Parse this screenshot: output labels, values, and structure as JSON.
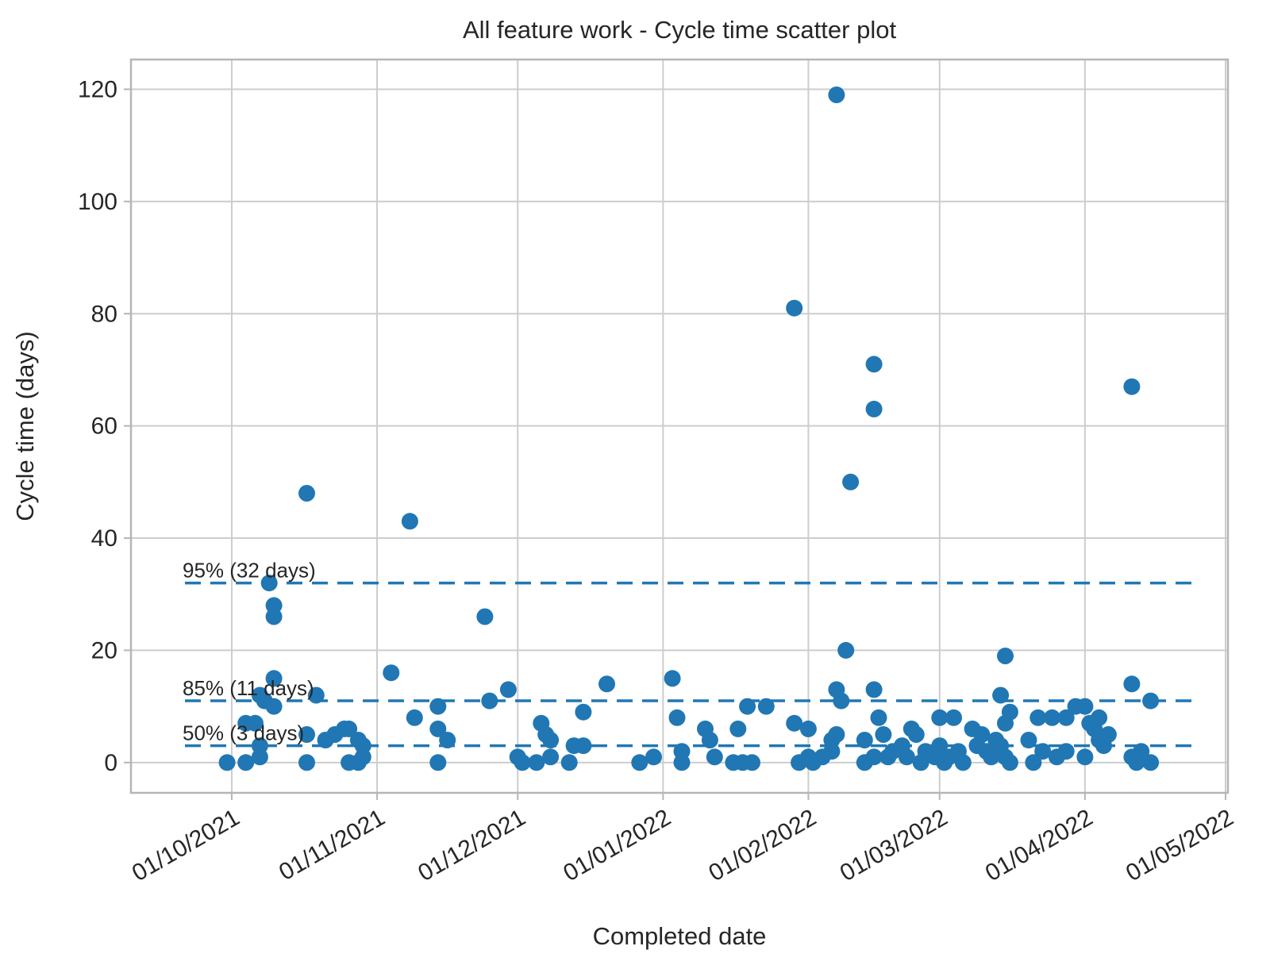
{
  "chart_data": {
    "type": "scatter",
    "title": "All feature work - Cycle time scatter plot",
    "xlabel": "Completed date",
    "ylabel": "Cycle time (days)",
    "grid": true,
    "legend": "none",
    "x_axis": {
      "origin_date": "2021-10-01",
      "xlim_days": [
        -21.5,
        212.5
      ],
      "tick_dates": [
        "2021-10-01",
        "2021-11-01",
        "2021-12-01",
        "2022-01-01",
        "2022-02-01",
        "2022-03-01",
        "2022-04-01",
        "2022-05-01"
      ],
      "tick_labels": [
        "01/10/2021",
        "01/11/2021",
        "01/12/2021",
        "01/01/2022",
        "01/02/2022",
        "01/03/2022",
        "01/04/2022",
        "01/05/2022"
      ],
      "tick_rotation_deg": -30
    },
    "y_axis": {
      "ylim": [
        -5.4,
        125.3
      ],
      "ticks": [
        0,
        20,
        40,
        60,
        80,
        100,
        120
      ]
    },
    "percentile_lines": [
      {
        "label": "95% (32 days)",
        "value": 32
      },
      {
        "label": "85% (11 days)",
        "value": 11
      },
      {
        "label": "50% (3 days)",
        "value": 3
      }
    ],
    "style": {
      "point_color": "#2077b4",
      "percentile_line_color": "#2077b4",
      "grid_color": "#cdcdcd",
      "spine_color": "#b6b6b6",
      "text_color": "#262626",
      "background": "#ffffff"
    },
    "points": [
      [
        "2021-09-30",
        0
      ],
      [
        "2021-10-04",
        0
      ],
      [
        "2021-10-04",
        7
      ],
      [
        "2021-10-06",
        7
      ],
      [
        "2021-10-07",
        3
      ],
      [
        "2021-10-07",
        1
      ],
      [
        "2021-10-07",
        12
      ],
      [
        "2021-10-08",
        11
      ],
      [
        "2021-10-10",
        10
      ],
      [
        "2021-10-10",
        15
      ],
      [
        "2021-10-10",
        26
      ],
      [
        "2021-10-10",
        28
      ],
      [
        "2021-10-09",
        32
      ],
      [
        "2021-10-17",
        48
      ],
      [
        "2021-10-17",
        5
      ],
      [
        "2021-10-17",
        0
      ],
      [
        "2021-10-19",
        12
      ],
      [
        "2021-10-21",
        4
      ],
      [
        "2021-10-23",
        5
      ],
      [
        "2021-10-25",
        6
      ],
      [
        "2021-10-26",
        6
      ],
      [
        "2021-10-26",
        0
      ],
      [
        "2021-10-28",
        4
      ],
      [
        "2021-10-28",
        0
      ],
      [
        "2021-10-29",
        3
      ],
      [
        "2021-10-29",
        1
      ],
      [
        "2021-11-04",
        16
      ],
      [
        "2021-11-08",
        43
      ],
      [
        "2021-11-09",
        8
      ],
      [
        "2021-11-14",
        10
      ],
      [
        "2021-11-14",
        6
      ],
      [
        "2021-11-14",
        0
      ],
      [
        "2021-11-16",
        4
      ],
      [
        "2021-11-24",
        26
      ],
      [
        "2021-11-25",
        11
      ],
      [
        "2021-11-29",
        13
      ],
      [
        "2021-12-01",
        1
      ],
      [
        "2021-12-02",
        0
      ],
      [
        "2021-12-05",
        0
      ],
      [
        "2021-12-06",
        7
      ],
      [
        "2021-12-07",
        5
      ],
      [
        "2021-12-08",
        4
      ],
      [
        "2021-12-08",
        1
      ],
      [
        "2021-12-12",
        0
      ],
      [
        "2021-12-13",
        3
      ],
      [
        "2021-12-15",
        3
      ],
      [
        "2021-12-15",
        9
      ],
      [
        "2021-12-20",
        14
      ],
      [
        "2021-12-27",
        0
      ],
      [
        "2021-12-30",
        1
      ],
      [
        "2022-01-03",
        15
      ],
      [
        "2022-01-04",
        8
      ],
      [
        "2022-01-05",
        2
      ],
      [
        "2022-01-05",
        0
      ],
      [
        "2022-01-10",
        6
      ],
      [
        "2022-01-11",
        4
      ],
      [
        "2022-01-12",
        1
      ],
      [
        "2022-01-16",
        0
      ],
      [
        "2022-01-17",
        6
      ],
      [
        "2022-01-18",
        0
      ],
      [
        "2022-01-19",
        10
      ],
      [
        "2022-01-20",
        0
      ],
      [
        "2022-01-23",
        10
      ],
      [
        "2022-01-29",
        81
      ],
      [
        "2022-01-29",
        7
      ],
      [
        "2022-01-30",
        0
      ],
      [
        "2022-02-01",
        6
      ],
      [
        "2022-02-01",
        1
      ],
      [
        "2022-02-02",
        0
      ],
      [
        "2022-02-04",
        1
      ],
      [
        "2022-02-06",
        4
      ],
      [
        "2022-02-06",
        2
      ],
      [
        "2022-02-07",
        119
      ],
      [
        "2022-02-07",
        5
      ],
      [
        "2022-02-07",
        13
      ],
      [
        "2022-02-08",
        11
      ],
      [
        "2022-02-09",
        20
      ],
      [
        "2022-02-10",
        50
      ],
      [
        "2022-02-13",
        4
      ],
      [
        "2022-02-13",
        0
      ],
      [
        "2022-02-15",
        71
      ],
      [
        "2022-02-15",
        63
      ],
      [
        "2022-02-15",
        13
      ],
      [
        "2022-02-15",
        1
      ],
      [
        "2022-02-16",
        8
      ],
      [
        "2022-02-17",
        5
      ],
      [
        "2022-02-18",
        1
      ],
      [
        "2022-02-19",
        2
      ],
      [
        "2022-02-21",
        3
      ],
      [
        "2022-02-22",
        1
      ],
      [
        "2022-02-23",
        6
      ],
      [
        "2022-02-24",
        5
      ],
      [
        "2022-02-25",
        0
      ],
      [
        "2022-02-26",
        2
      ],
      [
        "2022-02-28",
        1
      ],
      [
        "2022-03-01",
        8
      ],
      [
        "2022-03-01",
        3
      ],
      [
        "2022-03-02",
        1
      ],
      [
        "2022-03-02",
        0
      ],
      [
        "2022-03-03",
        1
      ],
      [
        "2022-03-04",
        8
      ],
      [
        "2022-03-05",
        2
      ],
      [
        "2022-03-06",
        0
      ],
      [
        "2022-03-08",
        6
      ],
      [
        "2022-03-09",
        3
      ],
      [
        "2022-03-10",
        5
      ],
      [
        "2022-03-11",
        2
      ],
      [
        "2022-03-12",
        1
      ],
      [
        "2022-03-13",
        4
      ],
      [
        "2022-03-14",
        12
      ],
      [
        "2022-03-14",
        3
      ],
      [
        "2022-03-15",
        19
      ],
      [
        "2022-03-15",
        7
      ],
      [
        "2022-03-15",
        1
      ],
      [
        "2022-03-16",
        9
      ],
      [
        "2022-03-16",
        0
      ],
      [
        "2022-03-20",
        4
      ],
      [
        "2022-03-21",
        0
      ],
      [
        "2022-03-22",
        8
      ],
      [
        "2022-03-23",
        2
      ],
      [
        "2022-03-25",
        8
      ],
      [
        "2022-03-26",
        1
      ],
      [
        "2022-03-28",
        8
      ],
      [
        "2022-03-28",
        2
      ],
      [
        "2022-03-30",
        10
      ],
      [
        "2022-04-01",
        10
      ],
      [
        "2022-04-01",
        1
      ],
      [
        "2022-04-02",
        7
      ],
      [
        "2022-04-03",
        6
      ],
      [
        "2022-04-04",
        8
      ],
      [
        "2022-04-04",
        4
      ],
      [
        "2022-04-05",
        3
      ],
      [
        "2022-04-06",
        5
      ],
      [
        "2022-04-11",
        67
      ],
      [
        "2022-04-11",
        14
      ],
      [
        "2022-04-11",
        1
      ],
      [
        "2022-04-12",
        0
      ],
      [
        "2022-04-13",
        2
      ],
      [
        "2022-04-15",
        11
      ],
      [
        "2022-04-15",
        0
      ]
    ]
  }
}
